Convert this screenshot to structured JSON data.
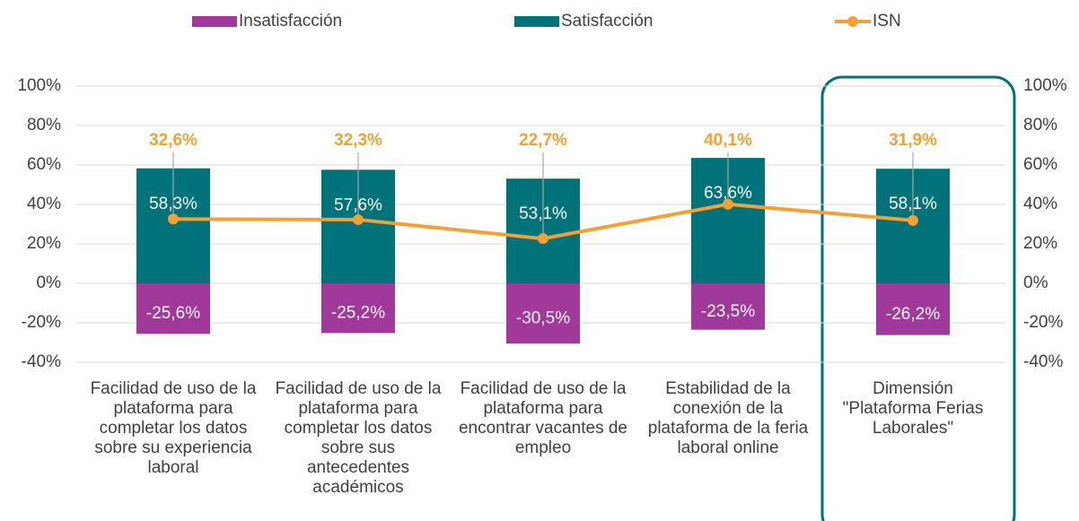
{
  "chart_data": {
    "type": "bar",
    "categories": [
      "Facilidad de uso de la plataforma para completar los datos sobre su experiencia laboral",
      "Facilidad de uso de la plataforma para completar los datos sobre sus antecedentes académicos",
      "Facilidad de uso de la plataforma para encontrar vacantes de empleo",
      "Estabilidad de la conexión de la plataforma de la feria laboral online",
      "Dimensión \"Plataforma Ferias Laborales\""
    ],
    "series": [
      {
        "name": "Insatisfacción",
        "color": "#a0399a",
        "values": [
          -25.6,
          -25.2,
          -30.5,
          -23.5,
          -26.2
        ],
        "value_labels": [
          "-25,6%",
          "-25,2%",
          "-30,5%",
          "-23,5%",
          "-26,2%"
        ]
      },
      {
        "name": "Satisfacción",
        "color": "#00737a",
        "values": [
          58.3,
          57.6,
          53.1,
          63.6,
          58.1
        ],
        "value_labels": [
          "58,3%",
          "57,6%",
          "53,1%",
          "63,6%",
          "58,1%"
        ]
      },
      {
        "name": "ISN",
        "type": "line",
        "color": "#f5a033",
        "values": [
          32.6,
          32.3,
          22.7,
          40.1,
          31.9
        ],
        "value_labels": [
          "32,6%",
          "32,3%",
          "22,7%",
          "40,1%",
          "31,9%"
        ]
      }
    ],
    "ylim": [
      -40,
      100
    ],
    "yticks": [
      {
        "value": -40,
        "label": "-40%"
      },
      {
        "value": -20,
        "label": "-20%"
      },
      {
        "value": 0,
        "label": "0%"
      },
      {
        "value": 20,
        "label": "20%"
      },
      {
        "value": 40,
        "label": "40%"
      },
      {
        "value": 60,
        "label": "60%"
      },
      {
        "value": 80,
        "label": "80%"
      },
      {
        "value": 100,
        "label": "100%"
      }
    ],
    "y2lim": [
      -40,
      100
    ],
    "y2ticks": [
      {
        "value": -40,
        "label": "-40%"
      },
      {
        "value": -20,
        "label": "-20%"
      },
      {
        "value": 0,
        "label": "0%"
      },
      {
        "value": 20,
        "label": "20%"
      },
      {
        "value": 40,
        "label": "40%"
      },
      {
        "value": 60,
        "label": "60%"
      },
      {
        "value": 80,
        "label": "80%"
      },
      {
        "value": 100,
        "label": "100%"
      }
    ],
    "grid": true,
    "legend": "top"
  }
}
